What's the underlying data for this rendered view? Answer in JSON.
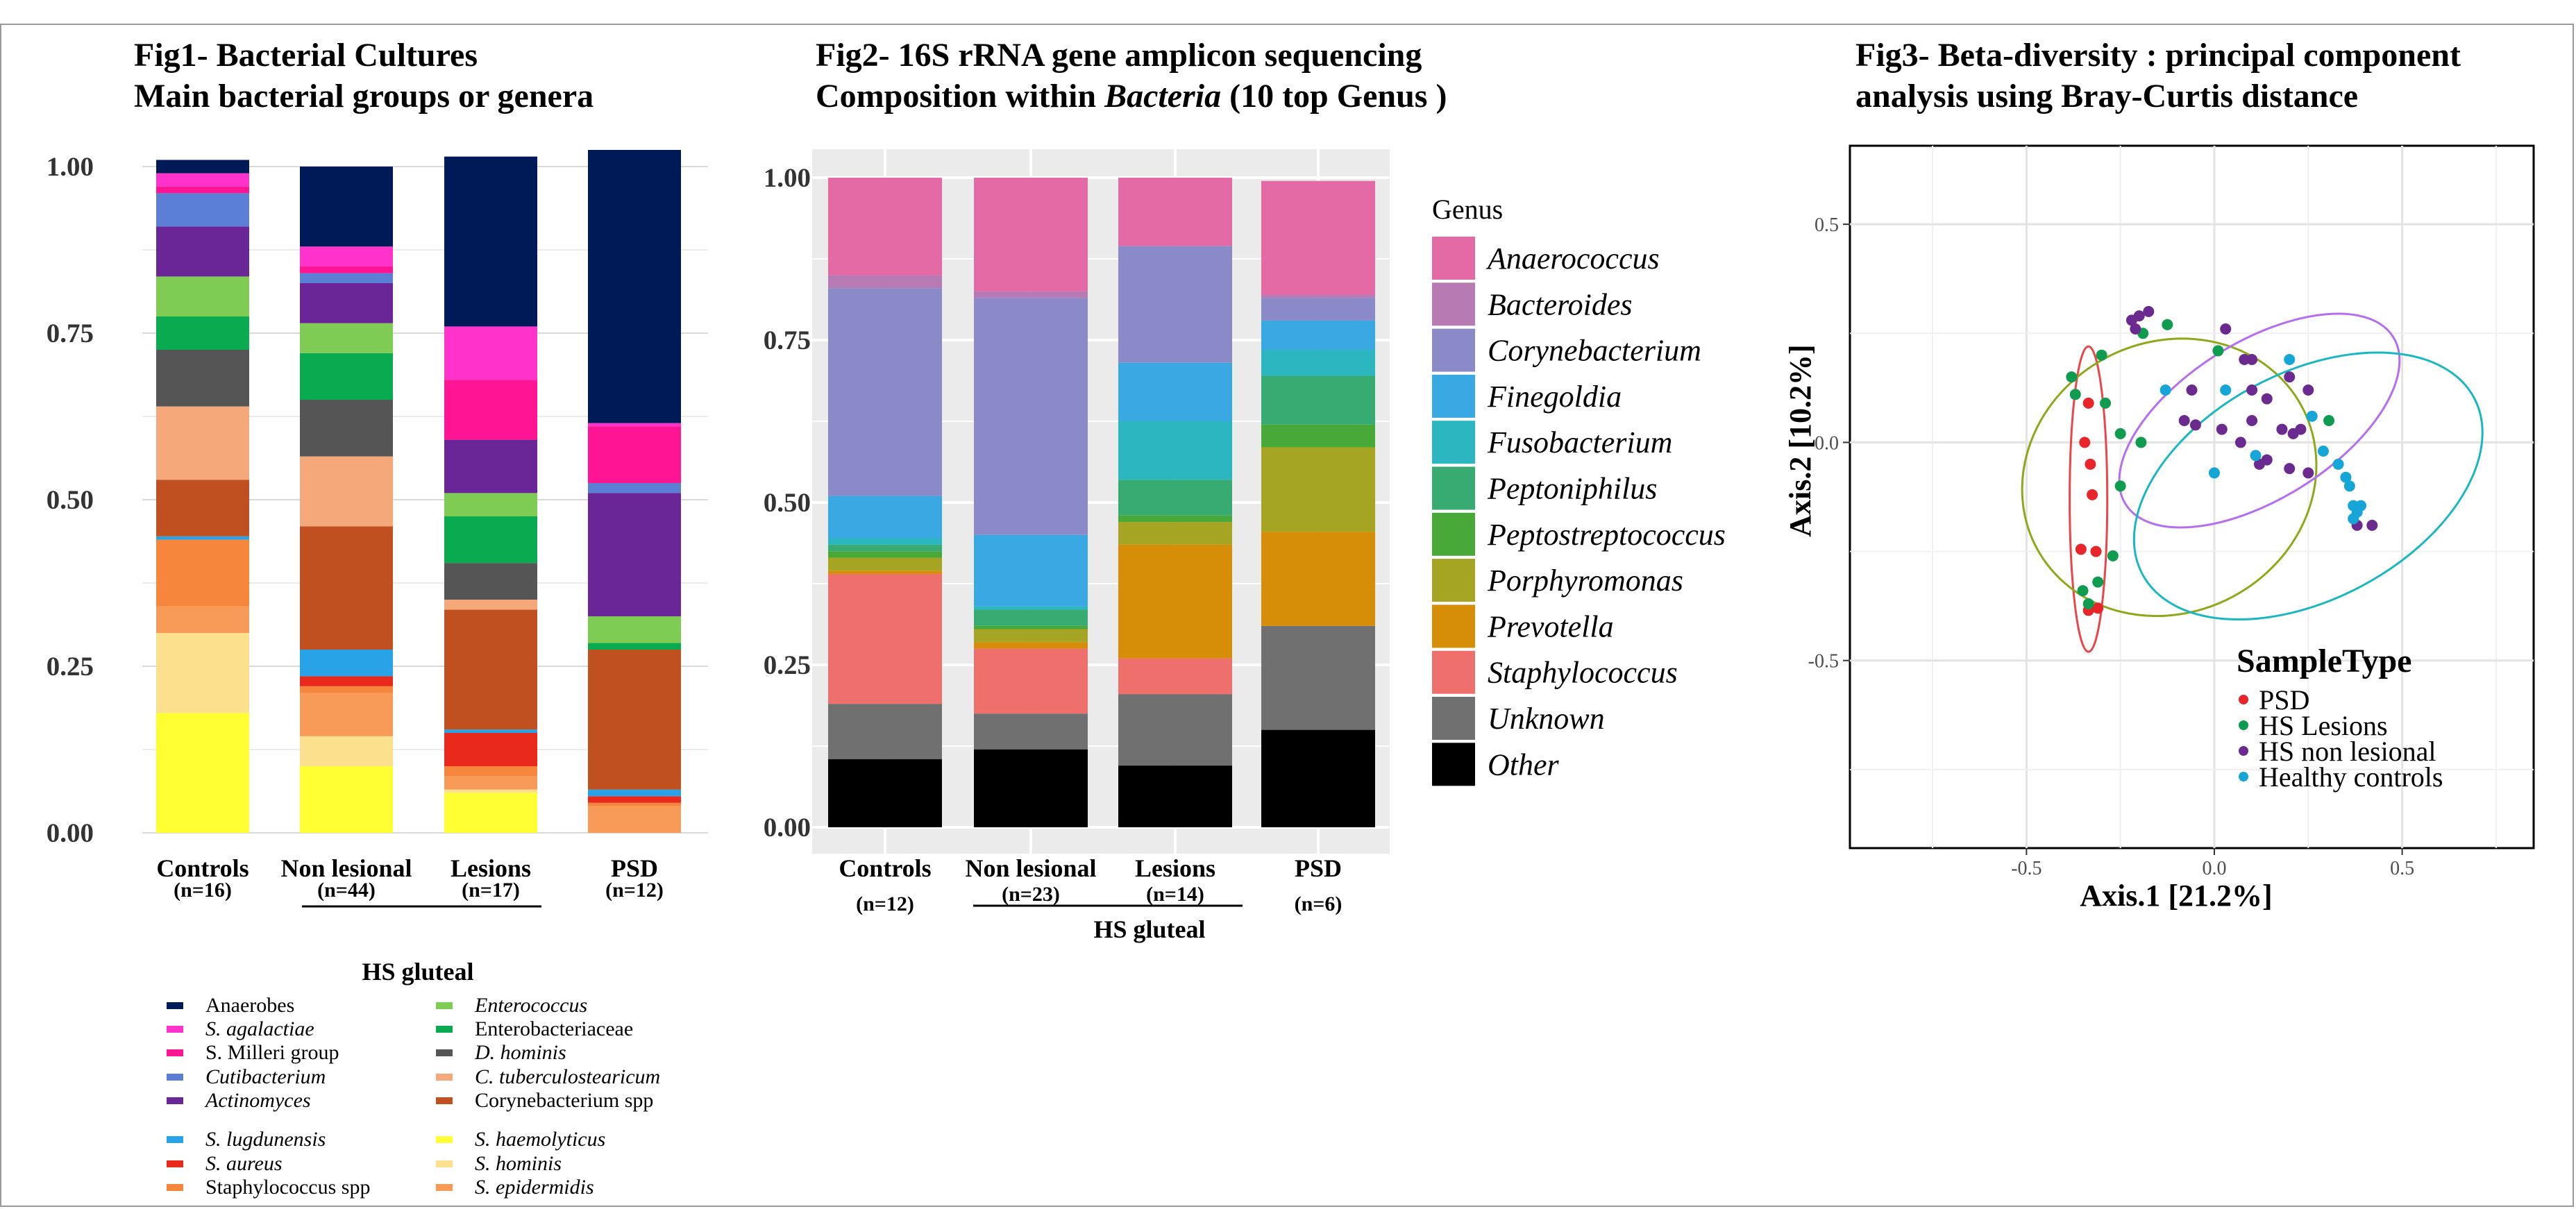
{
  "fig1": {
    "title_line1": "Fig1- Bacterial Cultures",
    "title_line2": "Main bacterial groups or genera",
    "group_label": "HS gluteal",
    "yticks": [
      "1.00",
      "0.75",
      "0.50",
      "0.25",
      "0.00"
    ],
    "categories": [
      {
        "label": "Controls",
        "n": "(n=16)"
      },
      {
        "label": "Non lesional",
        "n": "(n=44)"
      },
      {
        "label": "Lesions",
        "n": "(n=17)"
      },
      {
        "label": "PSD",
        "n": "(n=12)"
      }
    ],
    "legend": [
      {
        "name": "Anaerobes",
        "italic": false,
        "color": "#001a57"
      },
      {
        "name": "S. agalactiae",
        "italic": true,
        "color": "#ff33cc"
      },
      {
        "name": "S. Milleri group",
        "italic": false,
        "color": "#ff1493"
      },
      {
        "name": "Cutibacterium",
        "italic": true,
        "color": "#5b7fd4"
      },
      {
        "name": "Actinomyces",
        "italic": true,
        "color": "#6a2596"
      },
      {
        "name": "S. lugdunensis",
        "italic": true,
        "color": "#29a3e8"
      },
      {
        "name": "S. aureus",
        "italic": true,
        "color": "#e8291c"
      },
      {
        "name": "Staphylococcus spp",
        "italic": false,
        "color": "#f5863c"
      },
      {
        "name": "Enterococcus",
        "italic": true,
        "color": "#7fcc55"
      },
      {
        "name": "Enterobacteriaceae",
        "italic": false,
        "color": "#0aaa50"
      },
      {
        "name": "D. hominis",
        "italic": true,
        "color": "#555555"
      },
      {
        "name": "C. tuberculostearicum",
        "italic": true,
        "color": "#f5a87a"
      },
      {
        "name": "Corynebacterium spp",
        "italic": false,
        "color": "#c0501f"
      },
      {
        "name": "S. haemolyticus",
        "italic": true,
        "color": "#ffff33"
      },
      {
        "name": "S. hominis",
        "italic": true,
        "color": "#fde08e"
      },
      {
        "name": "S. epidermidis",
        "italic": true,
        "color": "#f99b58"
      }
    ]
  },
  "fig2": {
    "title_line1": "Fig2- 16S rRNA gene amplicon sequencing",
    "title_line2_a": "Composition within ",
    "title_line2_b": "Bacteria",
    "title_line2_c": " (10 top Genus )",
    "group_label": "HS gluteal",
    "legend_title": "Genus",
    "yticks": [
      "1.00",
      "0.75",
      "0.50",
      "0.25",
      "0.00"
    ],
    "categories": [
      {
        "label": "Controls",
        "n": "(n=12)"
      },
      {
        "label": "Non lesional",
        "n": "(n=23)"
      },
      {
        "label": "Lesions",
        "n": "(n=14)"
      },
      {
        "label": "PSD",
        "n": "(n=6)"
      }
    ],
    "legend": [
      {
        "name": "Anaerococcus",
        "color": "#e46aa5"
      },
      {
        "name": "Bacteroides",
        "color": "#b77ab3"
      },
      {
        "name": "Corynebacterium",
        "color": "#8a8ac8"
      },
      {
        "name": "Finegoldia",
        "color": "#3aa8e3"
      },
      {
        "name": "Fusobacterium",
        "color": "#2cb6c0"
      },
      {
        "name": "Peptoniphilus",
        "color": "#38ab73"
      },
      {
        "name": "Peptostreptococcus",
        "color": "#48a838"
      },
      {
        "name": "Porphyromonas",
        "color": "#a5a423"
      },
      {
        "name": "Prevotella",
        "color": "#d68e08"
      },
      {
        "name": "Staphylococcus",
        "color": "#ef6f6c"
      },
      {
        "name": "Unknown",
        "color": "#707070"
      },
      {
        "name": "Other",
        "color": "#000000"
      }
    ]
  },
  "fig3": {
    "title_line1": "Fig3- Beta-diversity : principal component",
    "title_line2": "analysis using Bray-Curtis distance",
    "xlabel": "Axis.1   [21.2%]",
    "ylabel": "Axis.2   [10.2%]",
    "legend_title": "SampleType",
    "xticks": [
      "-0.5",
      "0.0",
      "0.5"
    ],
    "yticks": [
      "0.5",
      "0.0",
      "-0.5"
    ],
    "legend": [
      {
        "name": "PSD",
        "color": "#e8252a"
      },
      {
        "name": "HS Lesions",
        "color": "#0f9b50"
      },
      {
        "name": "HS non lesional",
        "color": "#6b2a8f"
      },
      {
        "name": "Healthy controls",
        "color": "#15a5d6"
      }
    ]
  },
  "chart_data": [
    {
      "type": "bar",
      "stacked": true,
      "title": "Fig1- Bacterial Cultures Main bacterial groups or genera",
      "categories": [
        "Controls",
        "Non lesional",
        "Lesions",
        "PSD"
      ],
      "ylim": [
        0,
        1
      ],
      "grid": true,
      "legend_position": "bottom",
      "series": [
        {
          "name": "S. haemolyticus",
          "color": "#ffff33",
          "values": [
            0.18,
            0.1,
            0.06,
            0.0
          ]
        },
        {
          "name": "S. hominis",
          "color": "#fde08e",
          "values": [
            0.12,
            0.045,
            0.005,
            0.0
          ]
        },
        {
          "name": "S. epidermidis",
          "color": "#f99b58",
          "values": [
            0.04,
            0.065,
            0.02,
            0.04
          ]
        },
        {
          "name": "Staphylococcus spp",
          "color": "#f5863c",
          "values": [
            0.1,
            0.01,
            0.015,
            0.005
          ]
        },
        {
          "name": "S. aureus",
          "color": "#e8291c",
          "values": [
            0.0,
            0.015,
            0.05,
            0.01
          ]
        },
        {
          "name": "S. lugdunensis",
          "color": "#29a3e8",
          "values": [
            0.005,
            0.04,
            0.005,
            0.01
          ]
        },
        {
          "name": "Corynebacterium spp",
          "color": "#c0501f",
          "values": [
            0.085,
            0.185,
            0.18,
            0.21
          ]
        },
        {
          "name": "C. tuberculostearicum",
          "color": "#f5a87a",
          "values": [
            0.11,
            0.105,
            0.015,
            0.0
          ]
        },
        {
          "name": "D. hominis",
          "color": "#555555",
          "values": [
            0.085,
            0.085,
            0.055,
            0.0
          ]
        },
        {
          "name": "Enterobacteriaceae",
          "color": "#0aaa50",
          "values": [
            0.05,
            0.07,
            0.07,
            0.01
          ]
        },
        {
          "name": "Enterococcus",
          "color": "#7fcc55",
          "values": [
            0.06,
            0.045,
            0.035,
            0.04
          ]
        },
        {
          "name": "Actinomyces",
          "color": "#6a2596",
          "values": [
            0.075,
            0.06,
            0.08,
            0.185
          ]
        },
        {
          "name": "Cutibacterium",
          "color": "#5b7fd4",
          "values": [
            0.05,
            0.015,
            0.0,
            0.015
          ]
        },
        {
          "name": "S. Milleri group",
          "color": "#ff1493",
          "values": [
            0.01,
            0.01,
            0.09,
            0.085
          ]
        },
        {
          "name": "S. agalactiae",
          "color": "#ff33cc",
          "values": [
            0.02,
            0.03,
            0.08,
            0.005
          ]
        },
        {
          "name": "Anaerobes",
          "color": "#001a57",
          "values": [
            0.02,
            0.12,
            0.255,
            0.41
          ]
        }
      ]
    },
    {
      "type": "bar",
      "stacked": true,
      "title": "Fig2- 16S rRNA gene amplicon sequencing Composition within Bacteria (10 top Genus )",
      "categories": [
        "Controls",
        "Non lesional",
        "Lesions",
        "PSD"
      ],
      "ylim": [
        0,
        1
      ],
      "grid": true,
      "legend_position": "right",
      "series": [
        {
          "name": "Other",
          "color": "#000000",
          "values": [
            0.105,
            0.12,
            0.095,
            0.15
          ]
        },
        {
          "name": "Unknown",
          "color": "#707070",
          "values": [
            0.085,
            0.055,
            0.11,
            0.16
          ]
        },
        {
          "name": "Staphylococcus",
          "color": "#ef6f6c",
          "values": [
            0.2,
            0.1,
            0.055,
            0.0
          ]
        },
        {
          "name": "Prevotella",
          "color": "#d68e08",
          "values": [
            0.005,
            0.01,
            0.175,
            0.145
          ]
        },
        {
          "name": "Porphyromonas",
          "color": "#a5a423",
          "values": [
            0.02,
            0.02,
            0.035,
            0.13
          ]
        },
        {
          "name": "Peptostreptococcus",
          "color": "#48a838",
          "values": [
            0.01,
            0.005,
            0.01,
            0.035
          ]
        },
        {
          "name": "Peptoniphilus",
          "color": "#38ab73",
          "values": [
            0.01,
            0.025,
            0.055,
            0.075
          ]
        },
        {
          "name": "Fusobacterium",
          "color": "#2cb6c0",
          "values": [
            0.01,
            0.005,
            0.09,
            0.04
          ]
        },
        {
          "name": "Finegoldia",
          "color": "#3aa8e3",
          "values": [
            0.065,
            0.11,
            0.09,
            0.045
          ]
        },
        {
          "name": "Corynebacterium",
          "color": "#8a8ac8",
          "values": [
            0.32,
            0.365,
            0.18,
            0.035
          ]
        },
        {
          "name": "Bacteroides",
          "color": "#b77ab3",
          "values": [
            0.02,
            0.01,
            0.0,
            0.005
          ]
        },
        {
          "name": "Anaerococcus",
          "color": "#e46aa5",
          "values": [
            0.15,
            0.175,
            0.105,
            0.175
          ]
        }
      ]
    },
    {
      "type": "scatter",
      "title": "Fig3- Beta-diversity : principal component analysis using Bray-Curtis distance",
      "xlabel": "Axis.1   [21.2%]",
      "ylabel": "Axis.2   [10.2%]",
      "xlim": [
        -0.97,
        0.85
      ],
      "ylim": [
        -0.93,
        0.68
      ],
      "grid": true,
      "legend_position": "bottom-right",
      "series": [
        {
          "name": "PSD",
          "color": "#e8252a",
          "points": [
            [
              -0.335,
              0.09
            ],
            [
              -0.345,
              0.0
            ],
            [
              -0.33,
              -0.05
            ],
            [
              -0.325,
              -0.12
            ],
            [
              -0.355,
              -0.245
            ],
            [
              -0.315,
              -0.25
            ],
            [
              -0.335,
              -0.385
            ],
            [
              -0.31,
              -0.38
            ]
          ],
          "ellipse": {
            "cx": -0.335,
            "cy": -0.13,
            "rx": 0.05,
            "ry": 0.35,
            "angle": 0
          }
        },
        {
          "name": "HS Lesions",
          "color": "#0f9b50",
          "points": [
            [
              -0.38,
              0.15
            ],
            [
              -0.37,
              0.11
            ],
            [
              -0.3,
              0.2
            ],
            [
              -0.29,
              0.09
            ],
            [
              -0.25,
              -0.1
            ],
            [
              -0.195,
              0.0
            ],
            [
              -0.19,
              0.25
            ],
            [
              -0.25,
              0.02
            ],
            [
              -0.125,
              0.27
            ],
            [
              -0.27,
              -0.26
            ],
            [
              -0.35,
              -0.34
            ],
            [
              -0.335,
              -0.37
            ],
            [
              -0.31,
              -0.32
            ],
            [
              0.01,
              0.21
            ],
            [
              0.305,
              0.05
            ]
          ],
          "ellipse": {
            "cx": -0.12,
            "cy": -0.08,
            "rx": 0.4,
            "ry": 0.31,
            "angle": -28
          }
        },
        {
          "name": "HS non lesional",
          "color": "#6b2a8f",
          "points": [
            [
              -0.2,
              0.29
            ],
            [
              -0.22,
              0.28
            ],
            [
              -0.175,
              0.3
            ],
            [
              -0.21,
              0.26
            ],
            [
              0.03,
              0.26
            ],
            [
              0.08,
              0.19
            ],
            [
              0.1,
              0.19
            ],
            [
              -0.06,
              0.12
            ],
            [
              0.1,
              0.12
            ],
            [
              0.14,
              0.1
            ],
            [
              0.2,
              0.15
            ],
            [
              0.25,
              0.12
            ],
            [
              -0.08,
              0.05
            ],
            [
              -0.05,
              0.04
            ],
            [
              0.02,
              0.03
            ],
            [
              0.07,
              0.0
            ],
            [
              0.1,
              0.05
            ],
            [
              0.18,
              0.03
            ],
            [
              0.21,
              0.02
            ],
            [
              0.23,
              0.03
            ],
            [
              0.14,
              -0.04
            ],
            [
              0.2,
              -0.06
            ],
            [
              0.25,
              -0.07
            ],
            [
              0.12,
              -0.05
            ],
            [
              0.42,
              -0.19
            ],
            [
              0.38,
              -0.19
            ]
          ],
          "ellipse": {
            "cx": 0.12,
            "cy": 0.05,
            "rx": 0.42,
            "ry": 0.18,
            "angle": -32
          }
        },
        {
          "name": "Healthy controls",
          "color": "#15a5d6",
          "points": [
            [
              -0.13,
              0.12
            ],
            [
              0.03,
              0.12
            ],
            [
              0.2,
              0.19
            ],
            [
              0.11,
              -0.03
            ],
            [
              0.0,
              -0.07
            ],
            [
              0.26,
              0.06
            ],
            [
              0.29,
              -0.02
            ],
            [
              0.33,
              -0.05
            ],
            [
              0.35,
              -0.08
            ],
            [
              0.36,
              -0.1
            ],
            [
              0.37,
              -0.145
            ],
            [
              0.39,
              -0.145
            ],
            [
              0.38,
              -0.16
            ],
            [
              0.37,
              -0.175
            ]
          ],
          "ellipse": {
            "cx": 0.25,
            "cy": -0.1,
            "rx": 0.5,
            "ry": 0.26,
            "angle": -28
          }
        }
      ]
    }
  ]
}
